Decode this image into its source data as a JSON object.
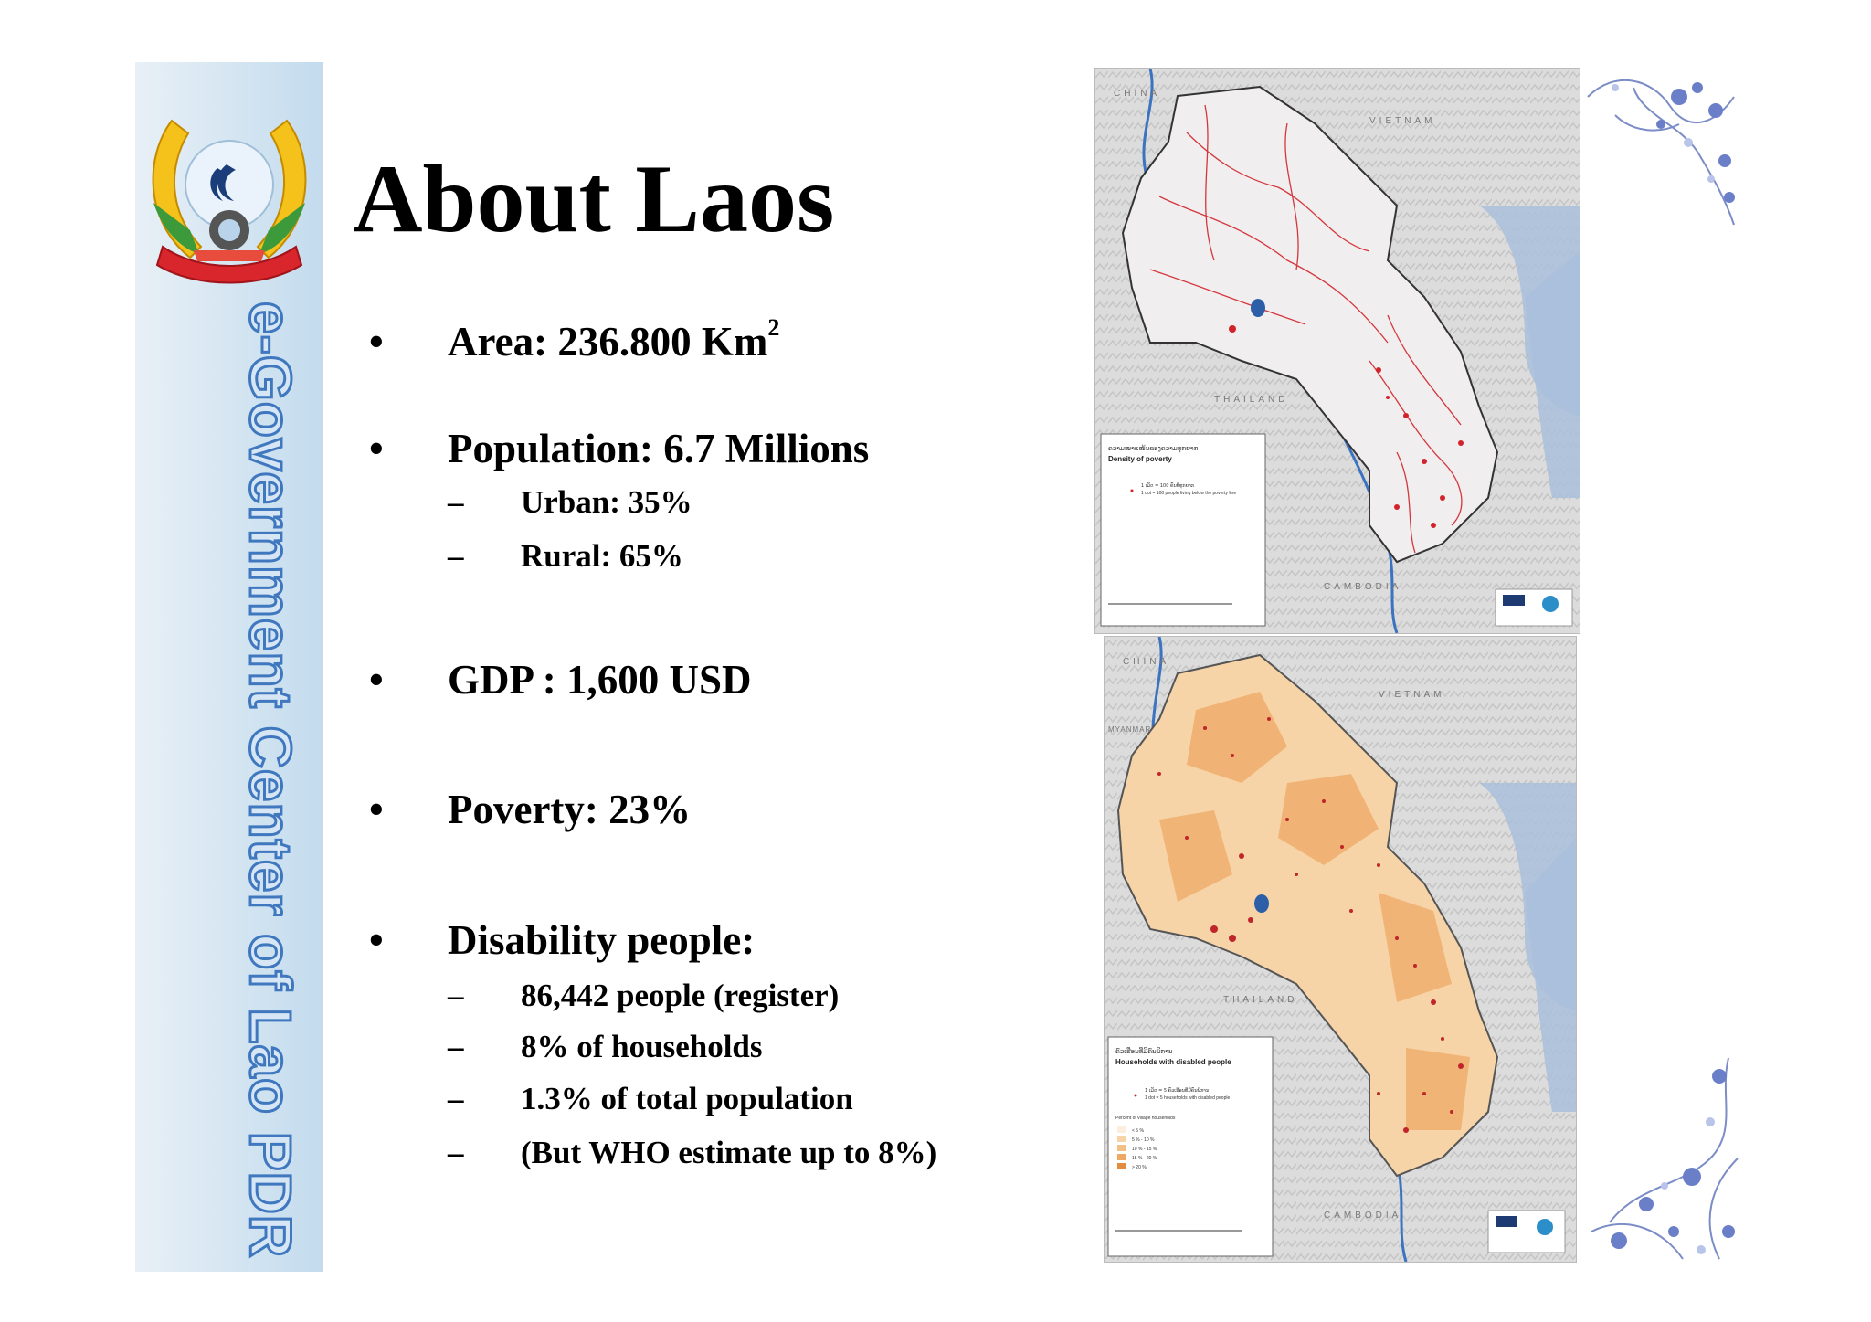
{
  "sidebar": {
    "vertical_text": "e-Government Center of Lao PDR",
    "emblem_icon": "lao-emblem-icon",
    "colors": {
      "stroke": "#3f78bf",
      "fill": "#d7e6f5",
      "banner": "#c3dbee"
    }
  },
  "title": "About Laos",
  "bullets": [
    {
      "text": "Area: 236.800 Km",
      "sup": "2",
      "subs": []
    },
    {
      "text": "Population: 6.7 Millions",
      "subs": [
        "Urban: 35%",
        "Rural:  65%"
      ]
    },
    {
      "text": "GDP : 1,600 USD",
      "subs": []
    },
    {
      "text": "Poverty: 23%",
      "subs": []
    },
    {
      "text": "Disability people:",
      "subs": [
        "86,442 people (register)",
        "8% of households",
        "1.3% of total population",
        "(But WHO estimate up to 8%)"
      ]
    }
  ],
  "bullet_glyph": "•",
  "sub_glyph": "–",
  "maps": [
    {
      "countries": {
        "china": "CHINA",
        "vietnam": "VIETNAM",
        "thailand": "THAILAND",
        "cambodia": "CAMBODIA"
      },
      "legend_title_lao": "ຄວາມໜາແໜ້ນຂອງຄວາມທຸກຍາກ",
      "legend_title": "Density of poverty",
      "legend_line1": "1 ເມັດ = 100 ຄົນທີ່ທຸກຍາກ",
      "legend_line2": "1 dot = 100 people living below the poverty line"
    },
    {
      "countries": {
        "china": "CHINA",
        "myanmar": "MYANMAR",
        "vietnam": "VIETNAM",
        "thailand": "THAILAND",
        "cambodia": "CAMBODIA"
      },
      "legend_title_lao": "ຄົວເຮືອນທີ່ມີຄົນພິການ",
      "legend_title": "Households with disabled people",
      "legend_line1": "1 ເມັດ = 5 ຄົວເຮືອນທີ່ມີຄົນພິການ",
      "legend_line2": "1 dot = 5 households with disabled people",
      "legend_sub": "Percent of village households",
      "classes": [
        "< 5 %",
        "5 % - 10 %",
        "10 % - 15 %",
        "15 % - 20 %",
        "> 20 %"
      ]
    }
  ]
}
